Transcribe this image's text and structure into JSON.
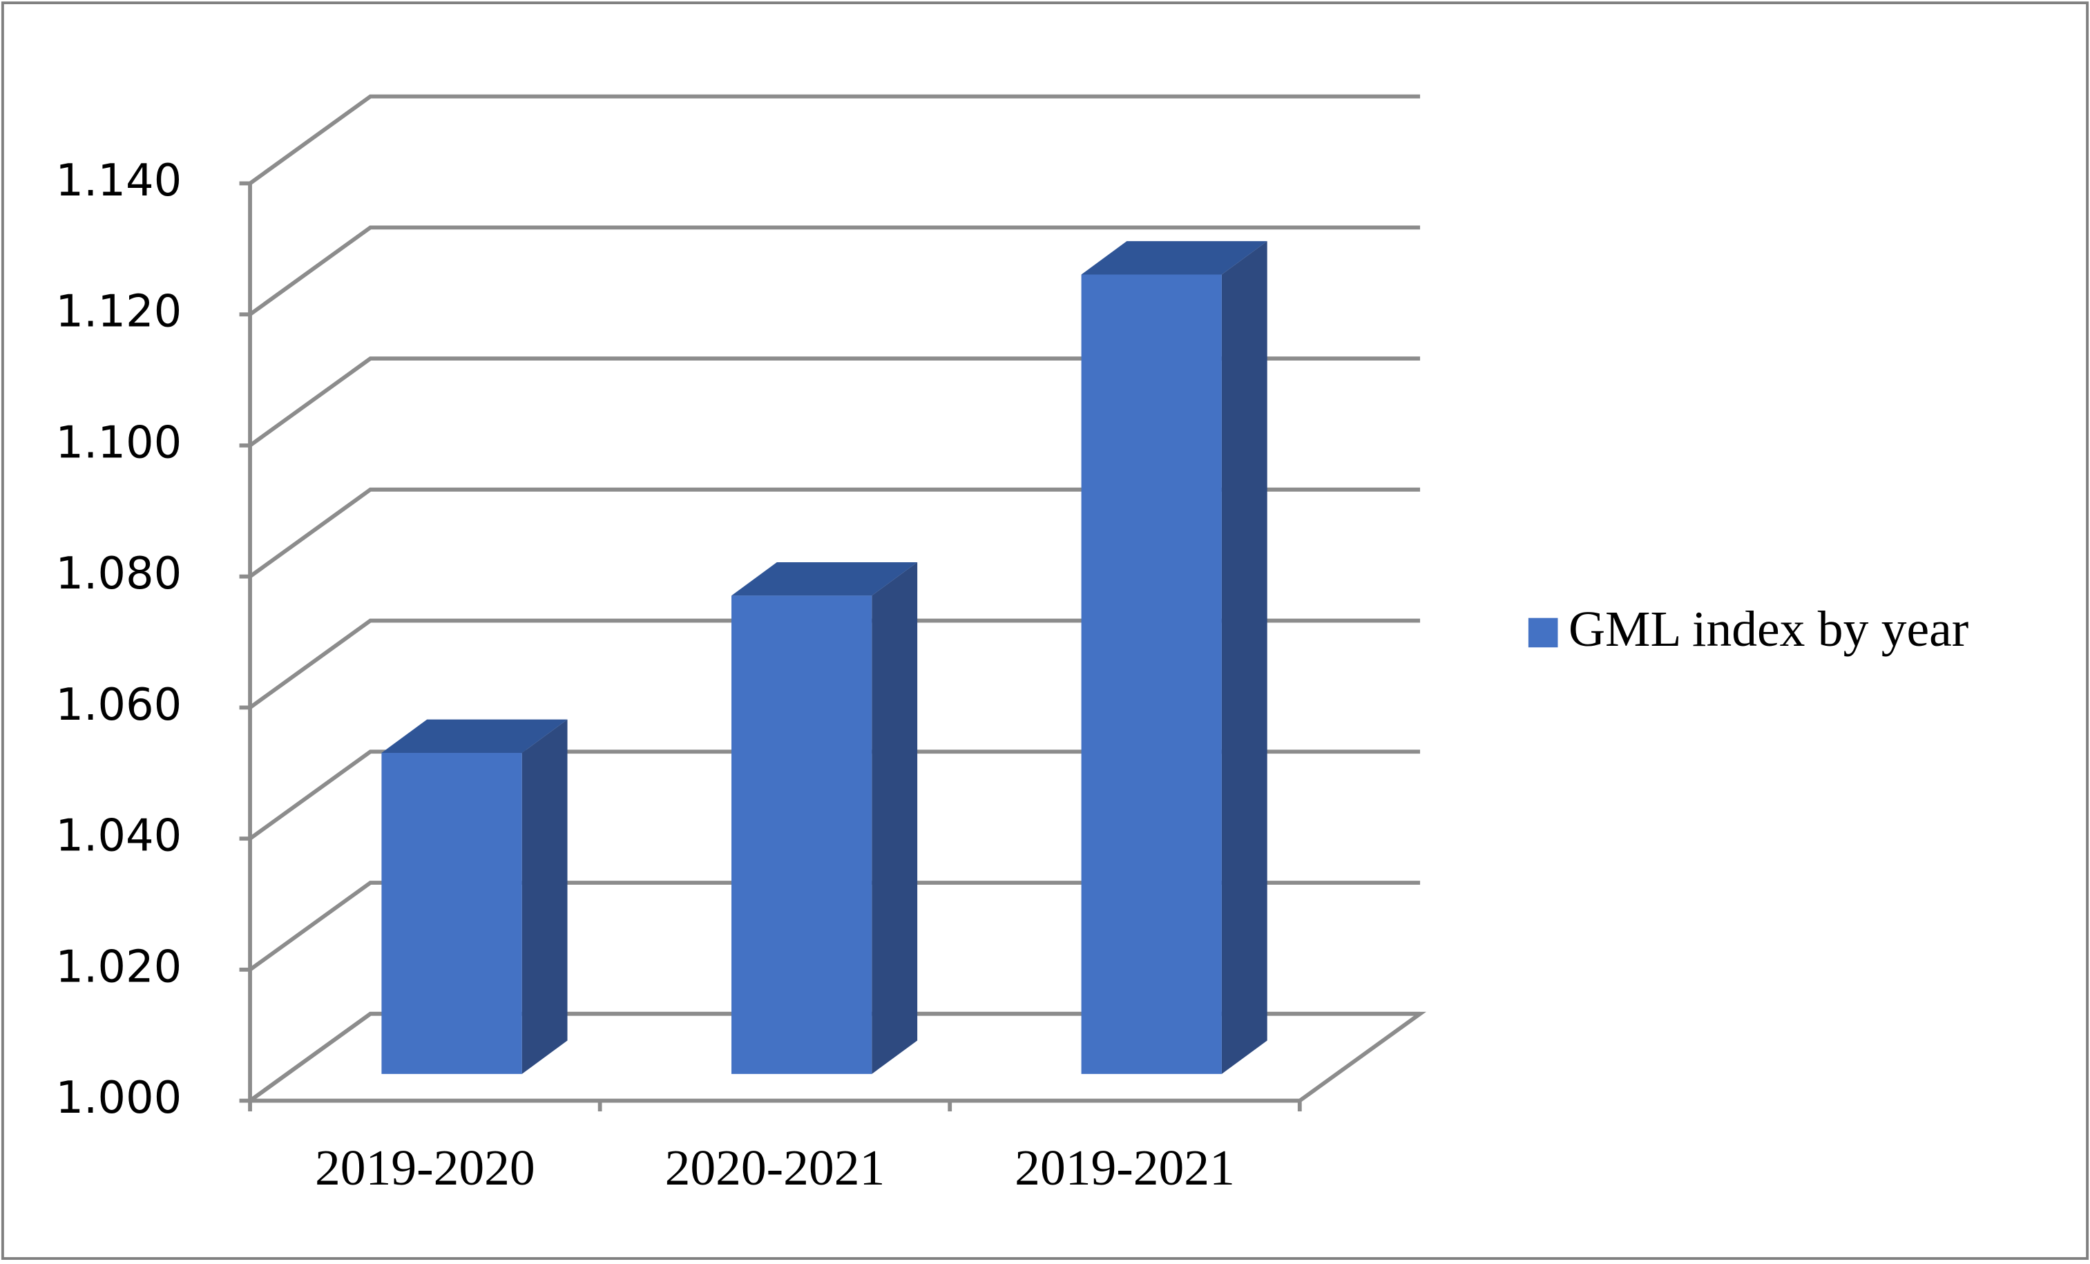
{
  "chart_data": {
    "type": "bar3d",
    "categories": [
      "2019-2020",
      "2020-2021",
      "2019-2021"
    ],
    "series": [
      {
        "name": "GML index by year",
        "color": "#4472c4",
        "values": [
          1.049,
          1.073,
          1.122
        ]
      }
    ],
    "ylim": [
      1.0,
      1.14
    ],
    "yticks": [
      {
        "value": 1.0,
        "label": "1.000"
      },
      {
        "value": 1.02,
        "label": "1.020"
      },
      {
        "value": 1.04,
        "label": "1.040"
      },
      {
        "value": 1.06,
        "label": "1.060"
      },
      {
        "value": 1.08,
        "label": "1.080"
      },
      {
        "value": 1.1,
        "label": "1.100"
      },
      {
        "value": 1.12,
        "label": "1.120"
      },
      {
        "value": 1.14,
        "label": "1.140"
      }
    ],
    "grid": true,
    "legend": "right"
  }
}
